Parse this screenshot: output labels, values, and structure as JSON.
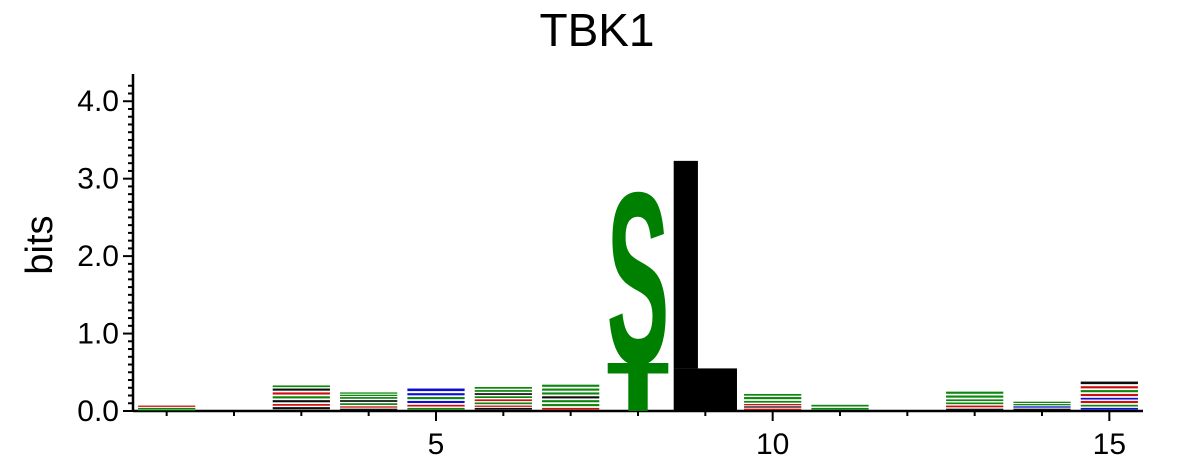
{
  "chart_data": {
    "type": "sequence-logo",
    "title": "TBK1",
    "ylabel": "bits",
    "xlabel": "",
    "ylim": [
      0,
      4.3
    ],
    "xlim": [
      0.5,
      15.5
    ],
    "yticks": [
      {
        "value": 0,
        "label": "0.0"
      },
      {
        "value": 1,
        "label": "1.0"
      },
      {
        "value": 2,
        "label": "2.0"
      },
      {
        "value": 3,
        "label": "3.0"
      },
      {
        "value": 4,
        "label": "4.0"
      }
    ],
    "xticks": [
      {
        "value": 5,
        "label": "5"
      },
      {
        "value": 10,
        "label": "10"
      },
      {
        "value": 15,
        "label": "15"
      }
    ],
    "colors": {
      "polar": "#008000",
      "hydrophobic": "#000000",
      "acidic": "#cc0000",
      "basic": "#0000cc"
    },
    "positions": [
      {
        "pos": 1,
        "stack": [
          [
            "green",
            0.02
          ],
          [
            "green",
            0.02
          ],
          [
            "red",
            0.03
          ]
        ]
      },
      {
        "pos": 2,
        "stack": []
      },
      {
        "pos": 3,
        "stack": [
          [
            "black",
            0.05
          ],
          [
            "red",
            0.04
          ],
          [
            "black",
            0.05
          ],
          [
            "green",
            0.05
          ],
          [
            "red",
            0.05
          ],
          [
            "black",
            0.05
          ],
          [
            "green",
            0.04
          ]
        ]
      },
      {
        "pos": 4,
        "stack": [
          [
            "black",
            0.03
          ],
          [
            "red",
            0.03
          ],
          [
            "green",
            0.04
          ],
          [
            "black",
            0.04
          ],
          [
            "green",
            0.04
          ],
          [
            "green",
            0.03
          ],
          [
            "green",
            0.03
          ]
        ]
      },
      {
        "pos": 5,
        "stack": [
          [
            "green",
            0.04
          ],
          [
            "red",
            0.04
          ],
          [
            "blue",
            0.05
          ],
          [
            "green",
            0.05
          ],
          [
            "blue",
            0.05
          ],
          [
            "blue",
            0.06
          ]
        ]
      },
      {
        "pos": 6,
        "stack": [
          [
            "black",
            0.04
          ],
          [
            "red",
            0.03
          ],
          [
            "green",
            0.04
          ],
          [
            "red",
            0.04
          ],
          [
            "green",
            0.04
          ],
          [
            "black",
            0.04
          ],
          [
            "green",
            0.04
          ],
          [
            "green",
            0.04
          ]
        ]
      },
      {
        "pos": 7,
        "stack": [
          [
            "red",
            0.04
          ],
          [
            "green",
            0.05
          ],
          [
            "green",
            0.05
          ],
          [
            "black",
            0.05
          ],
          [
            "green",
            0.05
          ],
          [
            "green",
            0.05
          ],
          [
            "green",
            0.05
          ]
        ]
      },
      {
        "pos": 8,
        "stack": [
          [
            "green",
            0.62
          ],
          [
            "green",
            2.28
          ]
        ],
        "letters": [
          "T",
          "S"
        ]
      },
      {
        "pos": 9,
        "stack": [
          [
            "black",
            0.55
          ],
          [
            "black",
            2.68
          ]
        ],
        "letters": [
          "",
          "L"
        ]
      },
      {
        "pos": 10,
        "stack": [
          [
            "red",
            0.03
          ],
          [
            "black",
            0.03
          ],
          [
            "red",
            0.03
          ],
          [
            "green",
            0.04
          ],
          [
            "green",
            0.05
          ],
          [
            "green",
            0.04
          ]
        ]
      },
      {
        "pos": 11,
        "stack": [
          [
            "green",
            0.04
          ],
          [
            "green",
            0.04
          ]
        ]
      },
      {
        "pos": 12,
        "stack": []
      },
      {
        "pos": 13,
        "stack": [
          [
            "black",
            0.03
          ],
          [
            "red",
            0.04
          ],
          [
            "green",
            0.04
          ],
          [
            "green",
            0.04
          ],
          [
            "green",
            0.05
          ],
          [
            "green",
            0.05
          ]
        ]
      },
      {
        "pos": 14,
        "stack": [
          [
            "black",
            0.03
          ],
          [
            "blue",
            0.03
          ],
          [
            "green",
            0.03
          ],
          [
            "green",
            0.03
          ]
        ]
      },
      {
        "pos": 15,
        "stack": [
          [
            "blue",
            0.04
          ],
          [
            "green",
            0.04
          ],
          [
            "red",
            0.05
          ],
          [
            "blue",
            0.04
          ],
          [
            "red",
            0.05
          ],
          [
            "green",
            0.05
          ],
          [
            "red",
            0.05
          ],
          [
            "black",
            0.06
          ]
        ]
      }
    ]
  }
}
